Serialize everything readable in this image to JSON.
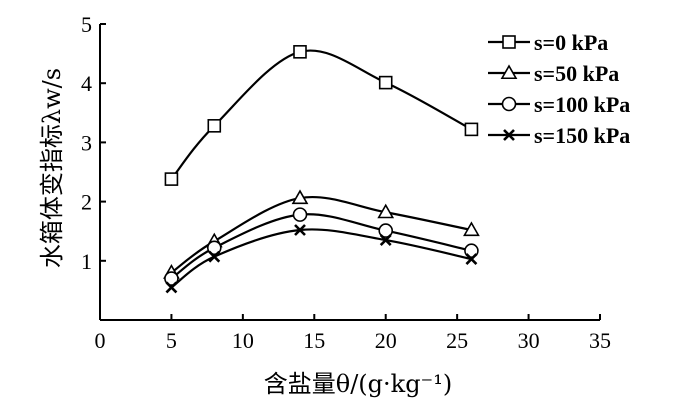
{
  "chart_data": {
    "type": "line",
    "x": [
      5,
      8,
      14,
      20,
      26
    ],
    "xlabel": "含盐量θ/(g·kg⁻¹)",
    "ylabel": "水箱体变指标λw/s",
    "xlim": [
      0,
      35
    ],
    "ylim": [
      0,
      5
    ],
    "xticks": [
      "0",
      "5",
      "10",
      "15",
      "20",
      "25",
      "30",
      "35"
    ],
    "yticks": [
      "1",
      "2",
      "3",
      "4",
      "5"
    ],
    "legend_position": "top-right",
    "grid": false,
    "series": [
      {
        "name": "s=0 kPa",
        "marker": "square",
        "values": [
          2.38,
          3.28,
          4.53,
          4.01,
          3.22
        ]
      },
      {
        "name": "s=50 kPa",
        "marker": "triangle",
        "values": [
          0.8,
          1.33,
          2.06,
          1.82,
          1.52
        ]
      },
      {
        "name": "s=100 kPa",
        "marker": "circle",
        "values": [
          0.7,
          1.22,
          1.78,
          1.51,
          1.17
        ]
      },
      {
        "name": "s=150 kPa",
        "marker": "x",
        "values": [
          0.55,
          1.07,
          1.52,
          1.35,
          1.03
        ]
      }
    ]
  }
}
